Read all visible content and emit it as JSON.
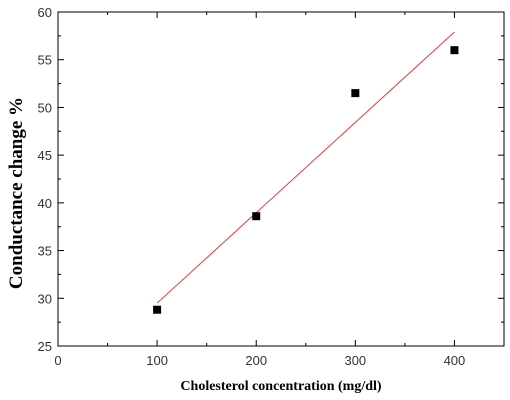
{
  "chart_data": {
    "type": "scatter",
    "title": "",
    "xlabel": "Cholesterol concentration (mg/dl)",
    "ylabel": "Conductance change %",
    "xlim": [
      0,
      450
    ],
    "ylim": [
      25,
      60
    ],
    "x_ticks": [
      0,
      100,
      200,
      300,
      400
    ],
    "y_ticks": [
      25,
      30,
      35,
      40,
      45,
      50,
      55,
      60
    ],
    "x_minor_ticks": [
      50,
      150,
      250,
      350
    ],
    "y_minor_ticks": [
      27.5,
      32.5,
      37.5,
      42.5,
      47.5,
      52.5,
      57.5
    ],
    "grid": false,
    "legend": "none",
    "series": [
      {
        "x": [
          100,
          200,
          300,
          400
        ],
        "y": [
          28.8,
          38.6,
          51.5,
          56.0
        ],
        "marker": "square",
        "color": "#000000"
      }
    ],
    "fit_line": {
      "x": [
        100,
        400
      ],
      "y": [
        29.5,
        57.9
      ],
      "color": "#e8383a"
    }
  }
}
